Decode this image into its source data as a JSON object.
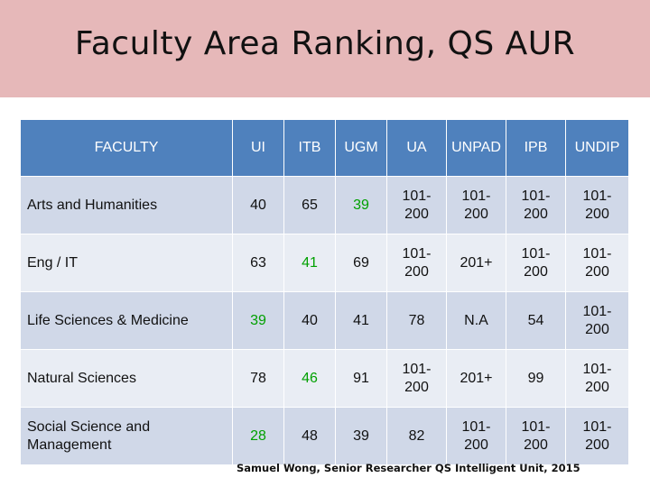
{
  "title": "Faculty Area Ranking, QS AUR",
  "table": {
    "headers": [
      "FACULTY",
      "UI",
      "ITB",
      "UGM",
      "UA",
      "UNPAD",
      "IPB",
      "UNDIP"
    ],
    "rows": [
      {
        "faculty": "Arts and Humanities",
        "cells": [
          "40",
          "65",
          "39",
          "101-\n200",
          "101-\n200",
          "101-\n200",
          "101-\n200"
        ]
      },
      {
        "faculty": "Eng / IT",
        "cells": [
          "63",
          "41",
          "69",
          "101-\n200",
          "201+",
          "101-\n200",
          "101-\n200"
        ]
      },
      {
        "faculty": "Life Sciences & Medicine",
        "cells": [
          "39",
          "40",
          "41",
          "78",
          "N.A",
          "54",
          "101-\n200"
        ]
      },
      {
        "faculty": "Natural Sciences",
        "cells": [
          "78",
          "46",
          "91",
          "101-\n200",
          "201+",
          "99",
          "101-\n200"
        ]
      },
      {
        "faculty": "Social Science and\nManagement",
        "cells": [
          "28",
          "48",
          "39",
          "82",
          "101-\n200",
          "101-\n200",
          "101-\n200"
        ]
      }
    ],
    "highlight_color": "#00a000"
  },
  "footer": "Samuel Wong, Senior Researcher QS Intelligent Unit, 2015"
}
